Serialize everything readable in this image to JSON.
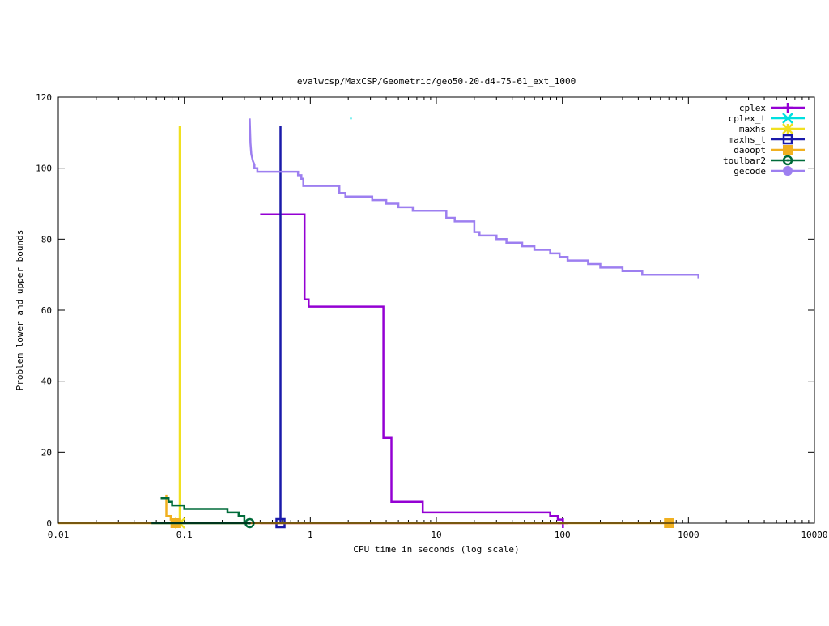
{
  "chart_data": {
    "type": "line",
    "title": "evalwcsp/MaxCSP/Geometric/geo50-20-d4-75-61_ext_1000",
    "xlabel": "CPU time in seconds (log scale)",
    "ylabel": "Problem lower and upper bounds",
    "x_scale": "log",
    "xlim": [
      0.01,
      10000
    ],
    "ylim": [
      0,
      120
    ],
    "x_ticks": [
      {
        "value": 0.01,
        "label": "0.01"
      },
      {
        "value": 0.1,
        "label": "0.1"
      },
      {
        "value": 1,
        "label": "1"
      },
      {
        "value": 10,
        "label": "10"
      },
      {
        "value": 100,
        "label": "100"
      },
      {
        "value": 1000,
        "label": "1000"
      },
      {
        "value": 10000,
        "label": "10000"
      }
    ],
    "y_ticks": [
      {
        "value": 0,
        "label": "0"
      },
      {
        "value": 20,
        "label": "20"
      },
      {
        "value": 40,
        "label": "40"
      },
      {
        "value": 60,
        "label": "60"
      },
      {
        "value": 80,
        "label": "80"
      },
      {
        "value": 100,
        "label": "100"
      },
      {
        "value": 120,
        "label": "120"
      }
    ],
    "grid": false,
    "legend_position": "top-right",
    "series": [
      {
        "name": "cplex",
        "color": "#9400d3",
        "marker": "plus",
        "upper": [
          [
            0.4,
            87
          ],
          [
            0.9,
            87
          ],
          [
            0.9,
            63
          ],
          [
            0.97,
            63
          ],
          [
            0.97,
            61
          ],
          [
            3.8,
            61
          ],
          [
            3.8,
            24
          ],
          [
            4.4,
            24
          ],
          [
            4.4,
            6
          ],
          [
            7.8,
            6
          ],
          [
            7.8,
            3
          ],
          [
            80,
            3
          ],
          [
            80,
            2
          ],
          [
            92,
            2
          ],
          [
            92,
            1
          ],
          [
            101,
            1
          ],
          [
            101,
            0
          ]
        ],
        "lower": [
          [
            0.4,
            0
          ],
          [
            101,
            0
          ]
        ],
        "markers": [
          [
            101,
            0
          ]
        ]
      },
      {
        "name": "cplex_t",
        "color": "#00e0e0",
        "marker": "x",
        "upper": [
          [
            2.1,
            114
          ]
        ],
        "lower": [],
        "markers": []
      },
      {
        "name": "maxhs",
        "color": "#f0e020",
        "marker": "star",
        "upper": [
          [
            0.092,
            112
          ],
          [
            0.092,
            0
          ]
        ],
        "lower": [
          [
            0.092,
            0
          ]
        ],
        "markers": [
          [
            0.092,
            0
          ]
        ]
      },
      {
        "name": "maxhs_t",
        "color": "#1a1aaa",
        "marker": "square-open",
        "upper": [
          [
            0.58,
            112
          ],
          [
            0.58,
            0
          ]
        ],
        "lower": [
          [
            0.58,
            0
          ]
        ],
        "markers": [
          [
            0.58,
            0
          ]
        ]
      },
      {
        "name": "daoopt",
        "color": "#f0b020",
        "marker": "square-filled",
        "upper": [
          [
            0.072,
            8
          ],
          [
            0.072,
            2
          ],
          [
            0.078,
            2
          ],
          [
            0.078,
            1
          ],
          [
            0.085,
            1
          ],
          [
            0.085,
            0
          ]
        ],
        "lower": [
          [
            0.01,
            0
          ],
          [
            700,
            0
          ]
        ],
        "markers": [
          [
            0.085,
            0
          ],
          [
            700,
            0
          ]
        ]
      },
      {
        "name": "toulbar2",
        "color": "#006b3a",
        "marker": "circle-open",
        "upper": [
          [
            0.065,
            7
          ],
          [
            0.075,
            7
          ],
          [
            0.075,
            6
          ],
          [
            0.08,
            6
          ],
          [
            0.08,
            5
          ],
          [
            0.1,
            5
          ],
          [
            0.1,
            4
          ],
          [
            0.22,
            4
          ],
          [
            0.22,
            3
          ],
          [
            0.27,
            3
          ],
          [
            0.27,
            2
          ],
          [
            0.3,
            2
          ],
          [
            0.3,
            0
          ],
          [
            0.33,
            0
          ]
        ],
        "lower": [
          [
            0.055,
            0
          ],
          [
            0.33,
            0
          ]
        ],
        "markers": [
          [
            0.33,
            0
          ]
        ]
      },
      {
        "name": "gecode",
        "color": "#9d7ff0",
        "marker": "circle-filled",
        "upper": [
          [
            0.33,
            114
          ],
          [
            0.335,
            107
          ],
          [
            0.34,
            104
          ],
          [
            0.345,
            103
          ],
          [
            0.35,
            102
          ],
          [
            0.36,
            101
          ],
          [
            0.36,
            100
          ],
          [
            0.38,
            100
          ],
          [
            0.38,
            99
          ],
          [
            0.4,
            99
          ],
          [
            0.8,
            99
          ],
          [
            0.8,
            98
          ],
          [
            0.85,
            98
          ],
          [
            0.85,
            97
          ],
          [
            0.88,
            97
          ],
          [
            0.88,
            95
          ],
          [
            1.7,
            95
          ],
          [
            1.7,
            93
          ],
          [
            1.9,
            93
          ],
          [
            1.9,
            92
          ],
          [
            3.1,
            92
          ],
          [
            3.1,
            91
          ],
          [
            4.0,
            91
          ],
          [
            4.0,
            90
          ],
          [
            5.0,
            90
          ],
          [
            5.0,
            89
          ],
          [
            6.5,
            89
          ],
          [
            6.5,
            88
          ],
          [
            12,
            88
          ],
          [
            12,
            86
          ],
          [
            14,
            86
          ],
          [
            14,
            85
          ],
          [
            20,
            85
          ],
          [
            20,
            82
          ],
          [
            22,
            82
          ],
          [
            22,
            81
          ],
          [
            30,
            81
          ],
          [
            30,
            80
          ],
          [
            36,
            80
          ],
          [
            36,
            79
          ],
          [
            48,
            79
          ],
          [
            48,
            78
          ],
          [
            60,
            78
          ],
          [
            60,
            77
          ],
          [
            80,
            77
          ],
          [
            80,
            76
          ],
          [
            95,
            76
          ],
          [
            95,
            75
          ],
          [
            110,
            75
          ],
          [
            110,
            74
          ],
          [
            160,
            74
          ],
          [
            160,
            73
          ],
          [
            200,
            73
          ],
          [
            200,
            72
          ],
          [
            300,
            72
          ],
          [
            300,
            71
          ],
          [
            430,
            71
          ],
          [
            430,
            70
          ],
          [
            1200,
            70
          ],
          [
            1200,
            69
          ]
        ],
        "lower": [],
        "markers": []
      }
    ]
  }
}
